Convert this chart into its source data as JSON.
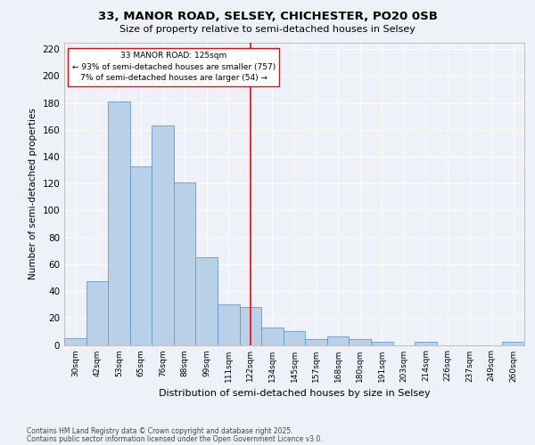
{
  "title1": "33, MANOR ROAD, SELSEY, CHICHESTER, PO20 0SB",
  "title2": "Size of property relative to semi-detached houses in Selsey",
  "xlabel": "Distribution of semi-detached houses by size in Selsey",
  "ylabel": "Number of semi-detached properties",
  "categories": [
    "30sqm",
    "42sqm",
    "53sqm",
    "65sqm",
    "76sqm",
    "88sqm",
    "99sqm",
    "111sqm",
    "122sqm",
    "134sqm",
    "145sqm",
    "157sqm",
    "168sqm",
    "180sqm",
    "191sqm",
    "203sqm",
    "214sqm",
    "226sqm",
    "237sqm",
    "249sqm",
    "260sqm"
  ],
  "values": [
    5,
    47,
    181,
    133,
    163,
    121,
    65,
    30,
    28,
    13,
    10,
    4,
    6,
    4,
    2,
    0,
    2,
    0,
    0,
    0,
    2
  ],
  "bar_color": "#b8d0e8",
  "bar_edge_color": "#6699cc",
  "vline_x_index": 8,
  "annotation_text_line1": "33 MANOR ROAD: 125sqm",
  "annotation_text_line2": "← 93% of semi-detached houses are smaller (757)",
  "annotation_text_line3": "7% of semi-detached houses are larger (54) →",
  "annotation_box_color": "white",
  "annotation_box_edge_color": "red",
  "vline_color": "red",
  "ylim": [
    0,
    225
  ],
  "yticks": [
    0,
    20,
    40,
    60,
    80,
    100,
    120,
    140,
    160,
    180,
    200,
    220
  ],
  "footer1": "Contains HM Land Registry data © Crown copyright and database right 2025.",
  "footer2": "Contains public sector information licensed under the Open Government Licence v3.0.",
  "bg_color": "#eef2f8",
  "grid_color": "white"
}
